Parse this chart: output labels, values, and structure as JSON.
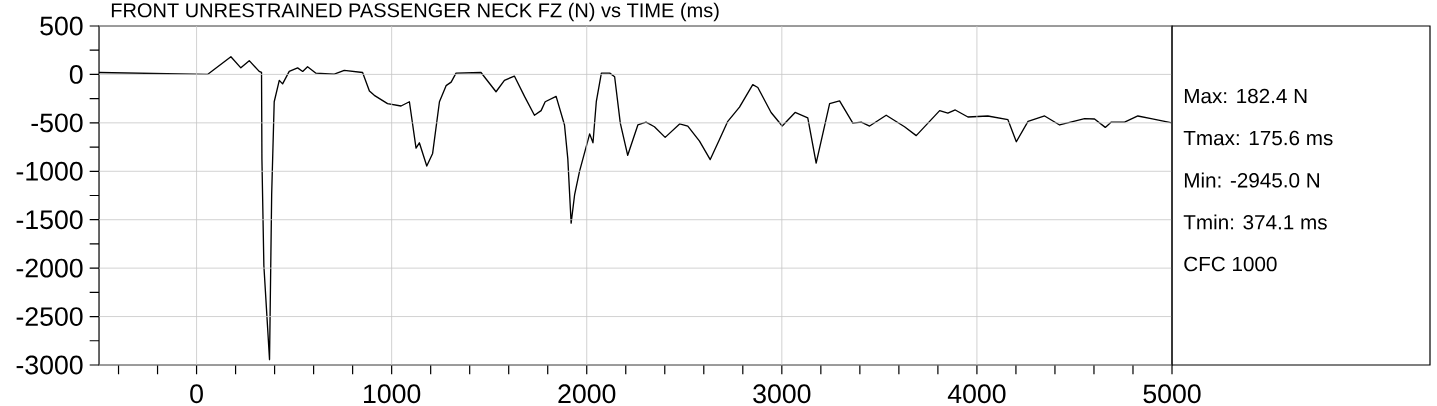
{
  "chart_data": {
    "type": "line",
    "title": "FRONT UNRESTRAINED PASSENGER NECK FZ (N) vs TIME (ms)",
    "x": [
      -500,
      56,
      176,
      227,
      270,
      321,
      333,
      335,
      345,
      374,
      385,
      398,
      424,
      441,
      475,
      518,
      544,
      569,
      612,
      706,
      757,
      851,
      886,
      911,
      979,
      1048,
      1091,
      1125,
      1142,
      1180,
      1210,
      1245,
      1279,
      1305,
      1330,
      1458,
      1535,
      1578,
      1629,
      1681,
      1732,
      1766,
      1787,
      1843,
      1886,
      1903,
      1920,
      1938,
      1963,
      2015,
      2032,
      2049,
      2075,
      2118,
      2143,
      2172,
      2210,
      2262,
      2304,
      2347,
      2402,
      2476,
      2518,
      2578,
      2633,
      2681,
      2723,
      2783,
      2851,
      2877,
      2945,
      3002,
      3068,
      3133,
      3176,
      3245,
      3296,
      3364,
      3407,
      3450,
      3535,
      3629,
      3689,
      3749,
      3809,
      3851,
      3889,
      3954,
      4056,
      4159,
      4202,
      4262,
      4347,
      4424,
      4552,
      4603,
      4658,
      4689,
      4757,
      4825,
      4893,
      5000
    ],
    "series": [
      {
        "color": "#000000",
        "values": [
          20,
          0,
          182,
          68,
          142,
          31,
          20,
          -872,
          -1975,
          -2945,
          -1240,
          -282,
          -61,
          -98,
          31,
          68,
          31,
          80,
          13,
          2,
          42,
          20,
          -171,
          -216,
          -301,
          -326,
          -282,
          -761,
          -706,
          -946,
          -816,
          -282,
          -116,
          -80,
          13,
          20,
          -179,
          -61,
          -17,
          -227,
          -422,
          -374,
          -282,
          -227,
          -522,
          -872,
          -1535,
          -1240,
          -1001,
          -614,
          -706,
          -282,
          13,
          13,
          -24,
          -503,
          -835,
          -522,
          -492,
          -540,
          -650,
          -511,
          -533,
          -688,
          -879,
          -669,
          -484,
          -337,
          -105,
          -135,
          -393,
          -533,
          -393,
          -448,
          -916,
          -301,
          -274,
          -503,
          -492,
          -533,
          -422,
          -540,
          -632,
          -503,
          -374,
          -400,
          -367,
          -440,
          -429,
          -467,
          -695,
          -484,
          -429,
          -522,
          -456,
          -460,
          -547,
          -492,
          -492,
          -429,
          -456,
          -500
        ]
      }
    ],
    "xlim": [
      -500,
      5000
    ],
    "ylim": [
      -3000,
      500
    ],
    "xticks": [
      {
        "value": -400,
        "label": null
      },
      {
        "value": -200,
        "label": null
      },
      0,
      {
        "value": 200,
        "label": null
      },
      {
        "value": 400,
        "label": null
      },
      {
        "value": 600,
        "label": null
      },
      {
        "value": 800,
        "label": null
      },
      1000,
      {
        "value": 1200,
        "label": null
      },
      {
        "value": 1400,
        "label": null
      },
      {
        "value": 1600,
        "label": null
      },
      {
        "value": 1800,
        "label": null
      },
      2000,
      {
        "value": 2200,
        "label": null
      },
      {
        "value": 2400,
        "label": null
      },
      {
        "value": 2600,
        "label": null
      },
      {
        "value": 2800,
        "label": null
      },
      3000,
      {
        "value": 3200,
        "label": null
      },
      {
        "value": 3400,
        "label": null
      },
      {
        "value": 3600,
        "label": null
      },
      {
        "value": 3800,
        "label": null
      },
      4000,
      {
        "value": 4200,
        "label": null
      },
      {
        "value": 4400,
        "label": null
      },
      {
        "value": 4600,
        "label": null
      },
      {
        "value": 4800,
        "label": null
      },
      5000
    ],
    "yticks": [
      -3000,
      {
        "value": -2750,
        "label": null
      },
      -2500,
      {
        "value": -2250,
        "label": null
      },
      -2000,
      {
        "value": -1750,
        "label": null
      },
      -1500,
      {
        "value": -1250,
        "label": null
      },
      -1000,
      {
        "value": -750,
        "label": null
      },
      -500,
      {
        "value": -250,
        "label": null
      },
      0,
      {
        "value": 250,
        "label": null
      },
      500
    ],
    "grid": true,
    "annotations": [
      "Max: 182.4 N",
      "Tmax: 175.6 ms",
      "Min: -2945.0 N",
      "Tmin: 374.1 ms",
      "CFC 1000"
    ]
  }
}
